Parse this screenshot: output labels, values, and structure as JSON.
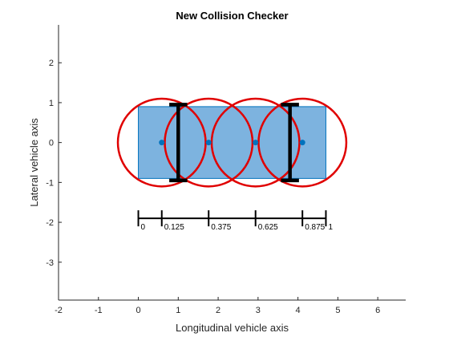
{
  "chart_data": {
    "type": "scatter",
    "title": "New Collision Checker",
    "xlabel": "Longitudinal vehicle axis",
    "ylabel": "Lateral vehicle axis",
    "xlim": [
      -2,
      6.7
    ],
    "ylim": [
      -3.95,
      2.95
    ],
    "xticks": [
      -2,
      -1,
      0,
      1,
      2,
      3,
      4,
      5,
      6
    ],
    "yticks": [
      2,
      1,
      0,
      -1,
      -2,
      -3
    ],
    "grid": false,
    "vehicle": {
      "x": 0,
      "y": -0.9,
      "length": 4.7,
      "width": 1.8,
      "fill": "#7db3df",
      "edge": "#0072bd"
    },
    "circle_centers": {
      "x": [
        0.587,
        1.762,
        2.937,
        4.112
      ],
      "y": [
        0,
        0,
        0,
        0
      ],
      "radius": 1.1,
      "color": "#e00000",
      "marker_color": "#0072bd"
    },
    "axles": [
      {
        "x": 1.0,
        "y_min": -0.95,
        "y_max": 0.95,
        "cap": 0.18
      },
      {
        "x": 3.8,
        "y_min": -0.95,
        "y_max": 0.95,
        "cap": 0.18
      }
    ],
    "ruler": {
      "y": -1.9,
      "positions": [
        0,
        0.587,
        1.762,
        2.937,
        4.112,
        4.7
      ],
      "labels": [
        "0",
        "0.125",
        "0.375",
        "0.625",
        "0.875",
        "1"
      ]
    }
  }
}
